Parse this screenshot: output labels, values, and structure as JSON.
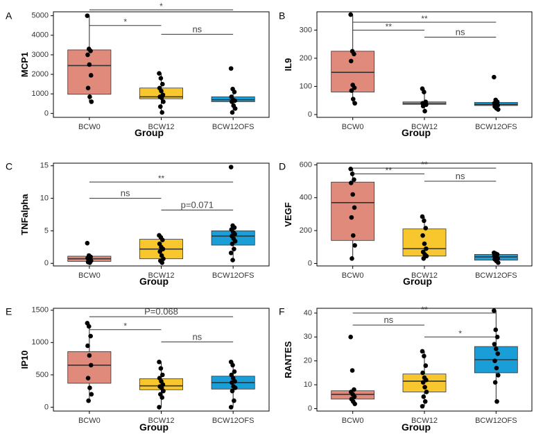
{
  "group_colors": {
    "BCW0": "#e08a7c",
    "BCW12": "#f7c72d",
    "BCW12OFS": "#1a9ed8"
  },
  "chart_data": [
    {
      "type": "box",
      "panel_label": "A",
      "ylabel": "MCP1",
      "xlabel": "Group",
      "categories": [
        "BCW0",
        "BCW12",
        "BCW12OFS"
      ],
      "ylim": [
        -200,
        5200
      ],
      "yticks": [
        0,
        1000,
        2000,
        3000,
        4000,
        5000
      ],
      "boxes": [
        {
          "group": "BCW0",
          "q1": 980,
          "median": 2450,
          "q3": 3250,
          "whisker_low": 600,
          "whisker_high": 5000,
          "points": [
            5000,
            3300,
            3200,
            3000,
            2500,
            1950,
            1300,
            850,
            600
          ]
        },
        {
          "group": "BCW12",
          "q1": 750,
          "median": 850,
          "q3": 1300,
          "whisker_low": 50,
          "whisker_high": 2050,
          "points": [
            2050,
            1800,
            1500,
            1300,
            1150,
            950,
            850,
            800,
            600,
            350,
            50
          ]
        },
        {
          "group": "BCW12OFS",
          "q1": 600,
          "median": 700,
          "q3": 850,
          "whisker_low": 50,
          "whisker_high": 1250,
          "points": [
            2300,
            1250,
            1100,
            850,
            700,
            650,
            600,
            400,
            250,
            50
          ]
        }
      ],
      "brackets": [
        {
          "from": 0,
          "to": 2,
          "y": 5300,
          "label": "*"
        },
        {
          "from": 0,
          "to": 1,
          "y": 4500,
          "label": "*"
        },
        {
          "from": 1,
          "to": 2,
          "y": 4050,
          "label": "ns"
        }
      ]
    },
    {
      "type": "box",
      "panel_label": "B",
      "ylabel": "IL9",
      "xlabel": "Group",
      "categories": [
        "BCW0",
        "BCW12",
        "BCW12OFS"
      ],
      "ylim": [
        -10,
        365
      ],
      "yticks": [
        0,
        100,
        200,
        300
      ],
      "boxes": [
        {
          "group": "BCW0",
          "q1": 80,
          "median": 150,
          "q3": 225,
          "whisker_low": 40,
          "whisker_high": 355,
          "points": [
            355,
            225,
            215,
            190,
            105,
            95,
            85,
            55,
            40
          ]
        },
        {
          "group": "BCW12",
          "q1": 36,
          "median": 40,
          "q3": 45,
          "whisker_low": 12,
          "whisker_high": 92,
          "points": [
            92,
            80,
            45,
            40,
            38,
            35,
            30,
            12
          ]
        },
        {
          "group": "BCW12OFS",
          "q1": 32,
          "median": 36,
          "q3": 43,
          "whisker_low": 18,
          "whisker_high": 52,
          "points": [
            133,
            52,
            45,
            40,
            36,
            33,
            28,
            22,
            18
          ]
        }
      ],
      "brackets": [
        {
          "from": 0,
          "to": 2,
          "y": 328,
          "label": "**"
        },
        {
          "from": 0,
          "to": 1,
          "y": 300,
          "label": "**"
        },
        {
          "from": 1,
          "to": 2,
          "y": 275,
          "label": "ns"
        }
      ]
    },
    {
      "type": "box",
      "panel_label": "C",
      "ylabel": "TNFalpha",
      "xlabel": "Group",
      "categories": [
        "BCW0",
        "BCW12",
        "BCW12OFS"
      ],
      "ylim": [
        -0.4,
        15.4
      ],
      "yticks": [
        0,
        5,
        10,
        15
      ],
      "boxes": [
        {
          "group": "BCW0",
          "q1": 0.3,
          "median": 0.7,
          "q3": 1.1,
          "whisker_low": 0.1,
          "whisker_high": 1.2,
          "points": [
            3.1,
            1.2,
            1.0,
            0.8,
            0.6,
            0.4,
            0.2,
            0.1
          ]
        },
        {
          "group": "BCW12",
          "q1": 0.7,
          "median": 2.2,
          "q3": 3.7,
          "whisker_low": 0.1,
          "whisker_high": 4.3,
          "points": [
            4.3,
            4.0,
            3.6,
            3.0,
            2.5,
            2.2,
            1.8,
            1.2,
            0.7,
            0.4,
            0.1
          ]
        },
        {
          "group": "BCW12OFS",
          "q1": 2.8,
          "median": 4.2,
          "q3": 5.0,
          "whisker_low": 0.5,
          "whisker_high": 5.8,
          "points": [
            14.8,
            5.8,
            5.5,
            5.2,
            4.8,
            4.5,
            4.2,
            3.8,
            3.4,
            3.0,
            2.2,
            1.6,
            0.5
          ]
        }
      ],
      "brackets": [
        {
          "from": 0,
          "to": 2,
          "y": 12.5,
          "label": "**"
        },
        {
          "from": 0,
          "to": 1,
          "y": 10.0,
          "label": "ns"
        },
        {
          "from": 1,
          "to": 2,
          "y": 8.2,
          "label": "p=0.071"
        }
      ]
    },
    {
      "type": "box",
      "panel_label": "D",
      "ylabel": "VEGF",
      "xlabel": "Group",
      "categories": [
        "BCW0",
        "BCW12",
        "BCW12OFS"
      ],
      "ylim": [
        -15,
        610
      ],
      "yticks": [
        0,
        200,
        400,
        600
      ],
      "boxes": [
        {
          "group": "BCW0",
          "q1": 140,
          "median": 370,
          "q3": 495,
          "whisker_low": 30,
          "whisker_high": 575,
          "points": [
            575,
            545,
            510,
            490,
            420,
            340,
            280,
            170,
            110,
            30
          ]
        },
        {
          "group": "BCW12",
          "q1": 45,
          "median": 90,
          "q3": 210,
          "whisker_low": 30,
          "whisker_high": 285,
          "points": [
            285,
            260,
            215,
            170,
            120,
            90,
            70,
            55,
            45,
            30
          ]
        },
        {
          "group": "BCW12OFS",
          "q1": 20,
          "median": 40,
          "q3": 55,
          "whisker_low": 5,
          "whisker_high": 65,
          "points": [
            65,
            60,
            55,
            45,
            40,
            30,
            25,
            15,
            5
          ]
        }
      ],
      "brackets": [
        {
          "from": 0,
          "to": 2,
          "y": 580,
          "label": "**"
        },
        {
          "from": 0,
          "to": 1,
          "y": 545,
          "label": "**"
        },
        {
          "from": 1,
          "to": 2,
          "y": 500,
          "label": "ns"
        }
      ]
    },
    {
      "type": "box",
      "panel_label": "E",
      "ylabel": "IP10",
      "xlabel": "Group",
      "categories": [
        "BCW0",
        "BCW12",
        "BCW12OFS"
      ],
      "ylim": [
        -60,
        1530
      ],
      "yticks": [
        0,
        500,
        1000,
        1500
      ],
      "boxes": [
        {
          "group": "BCW0",
          "q1": 370,
          "median": 650,
          "q3": 860,
          "whisker_low": 100,
          "whisker_high": 1300,
          "points": [
            1300,
            1250,
            1100,
            950,
            800,
            650,
            450,
            300,
            200,
            100
          ]
        },
        {
          "group": "BCW12",
          "q1": 270,
          "median": 330,
          "q3": 440,
          "whisker_low": 0,
          "whisker_high": 700,
          "points": [
            700,
            600,
            500,
            450,
            400,
            350,
            320,
            300,
            250,
            200,
            150,
            0
          ]
        },
        {
          "group": "BCW12OFS",
          "q1": 280,
          "median": 380,
          "q3": 480,
          "whisker_low": 0,
          "whisker_high": 700,
          "points": [
            700,
            650,
            550,
            500,
            450,
            400,
            380,
            320,
            300,
            250,
            100,
            0
          ]
        }
      ],
      "brackets": [
        {
          "from": 0,
          "to": 2,
          "y": 1400,
          "label": "P=0.068"
        },
        {
          "from": 0,
          "to": 1,
          "y": 1200,
          "label": "*"
        },
        {
          "from": 1,
          "to": 2,
          "y": 1010,
          "label": "ns"
        }
      ]
    },
    {
      "type": "box",
      "panel_label": "F",
      "ylabel": "RANTES",
      "xlabel": "Group",
      "categories": [
        "BCW0",
        "BCW12",
        "BCW12OFS"
      ],
      "ylim": [
        -1,
        42
      ],
      "yticks": [
        0,
        10,
        20,
        30,
        40
      ],
      "boxes": [
        {
          "group": "BCW0",
          "q1": 4,
          "median": 6,
          "q3": 7.5,
          "whisker_low": 2,
          "whisker_high": 8.5,
          "points": [
            30,
            16,
            8,
            7,
            6,
            5,
            4,
            3,
            2
          ]
        },
        {
          "group": "BCW12",
          "q1": 7,
          "median": 11.5,
          "q3": 14.5,
          "whisker_low": 1,
          "whisker_high": 24,
          "points": [
            24,
            22,
            18,
            15,
            13,
            12,
            11,
            9,
            7,
            5,
            3,
            1
          ]
        },
        {
          "group": "BCW12OFS",
          "q1": 15,
          "median": 20.5,
          "q3": 26,
          "whisker_low": 3,
          "whisker_high": 41,
          "points": [
            41,
            33,
            30,
            27,
            25,
            23,
            20,
            17,
            14,
            11,
            3
          ]
        }
      ],
      "brackets": [
        {
          "from": 0,
          "to": 2,
          "y": 40,
          "label": "**"
        },
        {
          "from": 0,
          "to": 1,
          "y": 35,
          "label": "ns"
        },
        {
          "from": 1,
          "to": 2,
          "y": 30,
          "label": "*"
        }
      ]
    }
  ]
}
